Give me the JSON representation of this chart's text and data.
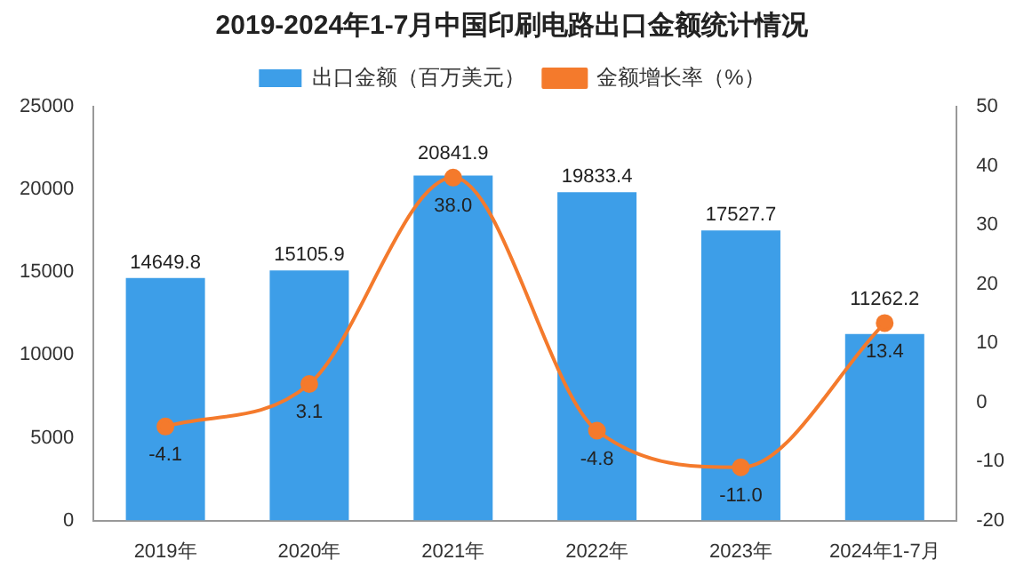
{
  "chart_data": {
    "type": "bar",
    "title": "2019-2024年1-7月中国印刷电路出口金额统计情况",
    "categories": [
      "2019年",
      "2020年",
      "2021年",
      "2022年",
      "2023年",
      "2024年1-7月"
    ],
    "series": [
      {
        "name": "出口金额（百万美元）",
        "color": "#3d9ee8",
        "values": [
          14649.8,
          15105.9,
          20841.9,
          19833.4,
          17527.7,
          11262.2
        ]
      },
      {
        "name": "金额增长率（%）",
        "type": "line",
        "axis": "y2",
        "color": "#f47a2c",
        "values": [
          -4.1,
          3.1,
          38.0,
          -4.8,
          -11.0,
          13.4
        ],
        "value_labels": [
          "-4.1",
          "3.1",
          "38.0",
          "-4.8",
          "-11.0",
          "13.4"
        ]
      }
    ],
    "ylim": [
      0,
      25000
    ],
    "yticks": [
      0,
      5000,
      10000,
      15000,
      20000,
      25000
    ],
    "y2lim": [
      -20,
      50
    ],
    "y2ticks": [
      -20,
      -10,
      0,
      10,
      20,
      30,
      40,
      50
    ],
    "data_labels": true,
    "grid": false,
    "legend": "top",
    "marker": "circle",
    "line_style": "solid"
  }
}
